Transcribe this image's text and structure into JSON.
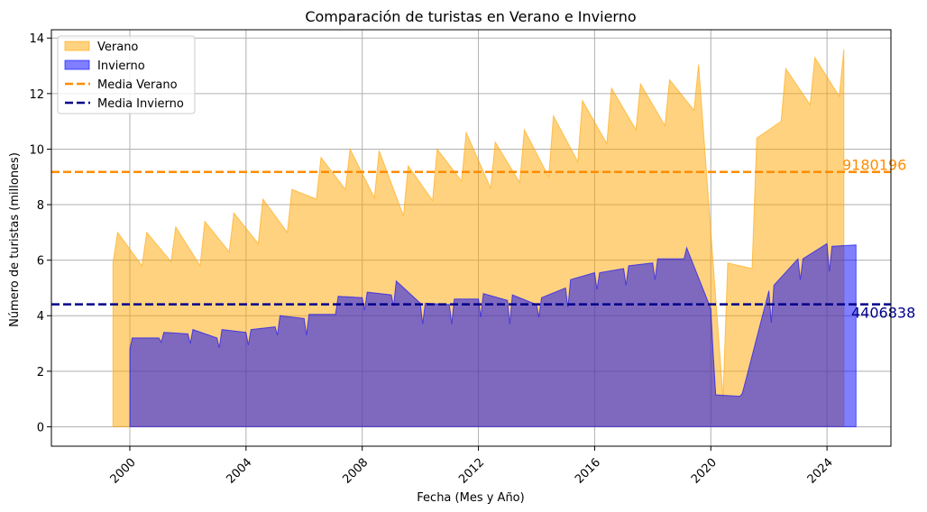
{
  "chart_data": {
    "type": "area",
    "title": "Comparación de turistas en Verano e Invierno",
    "xlabel": "Fecha (Mes y Año)",
    "ylabel": "Número de turistas (millones)",
    "xlim": [
      1997.3,
      2026.2
    ],
    "ylim": [
      -0.7,
      14.3
    ],
    "x_ticks": [
      2000,
      2004,
      2008,
      2012,
      2016,
      2020,
      2024
    ],
    "x_tick_labels": [
      "2000",
      "2004",
      "2008",
      "2012",
      "2016",
      "2020",
      "2024"
    ],
    "y_ticks": [
      0,
      2,
      4,
      6,
      8,
      10,
      12,
      14
    ],
    "y_tick_labels": [
      "0",
      "2",
      "4",
      "6",
      "8",
      "10",
      "12",
      "14"
    ],
    "grid": true,
    "legend_position": "top-left",
    "series": [
      {
        "name": "Verano",
        "kind": "area",
        "color": "#ffa500",
        "x": [
          1999.42,
          1999.58,
          2000.42,
          2000.58,
          2001.42,
          2001.58,
          2002.42,
          2002.58,
          2003.42,
          2003.58,
          2004.42,
          2004.58,
          2005.42,
          2005.58,
          2006.42,
          2006.58,
          2007.42,
          2007.58,
          2008.42,
          2008.58,
          2009.42,
          2009.58,
          2010.42,
          2010.58,
          2011.42,
          2011.58,
          2012.42,
          2012.58,
          2013.42,
          2013.58,
          2014.42,
          2014.58,
          2015.42,
          2015.58,
          2016.42,
          2016.58,
          2017.42,
          2017.58,
          2018.42,
          2018.58,
          2019.42,
          2019.58,
          2020.42,
          2020.58,
          2021.42,
          2021.58,
          2022.42,
          2022.58,
          2023.42,
          2023.58,
          2024.42,
          2024.58
        ],
        "values": [
          5.9,
          7.0,
          5.8,
          7.0,
          5.95,
          7.2,
          5.8,
          7.4,
          6.3,
          7.7,
          6.6,
          8.2,
          7.0,
          8.55,
          8.2,
          9.7,
          8.55,
          10.0,
          8.25,
          9.95,
          7.6,
          9.4,
          8.15,
          10.0,
          8.85,
          10.6,
          8.6,
          10.25,
          8.8,
          10.7,
          9.0,
          11.2,
          9.55,
          11.75,
          10.2,
          12.2,
          10.7,
          12.35,
          10.85,
          12.5,
          11.4,
          13.05,
          1.05,
          5.9,
          5.7,
          10.4,
          11.0,
          12.9,
          11.6,
          13.3,
          11.9,
          13.6
        ]
      },
      {
        "name": "Invierno",
        "kind": "area",
        "color": "#0000ff",
        "x": [
          2000.0,
          2000.08,
          2000.17,
          2001.0,
          2001.08,
          2001.17,
          2002.0,
          2002.08,
          2002.17,
          2003.0,
          2003.08,
          2003.17,
          2004.0,
          2004.08,
          2004.17,
          2005.0,
          2005.08,
          2005.17,
          2006.0,
          2006.08,
          2006.17,
          2007.0,
          2007.08,
          2007.17,
          2008.0,
          2008.08,
          2008.17,
          2009.0,
          2009.08,
          2009.17,
          2010.0,
          2010.08,
          2010.17,
          2011.0,
          2011.08,
          2011.17,
          2012.0,
          2012.08,
          2012.17,
          2013.0,
          2013.08,
          2013.17,
          2014.0,
          2014.08,
          2014.17,
          2015.0,
          2015.08,
          2015.17,
          2016.0,
          2016.08,
          2016.17,
          2017.0,
          2017.08,
          2017.17,
          2018.0,
          2018.08,
          2018.17,
          2019.0,
          2019.08,
          2019.17,
          2020.0,
          2020.08,
          2020.17,
          2021.0,
          2021.08,
          2021.17,
          2022.0,
          2022.08,
          2022.17,
          2023.0,
          2023.08,
          2023.17,
          2024.0,
          2024.08,
          2024.17,
          2025.0
        ],
        "values": [
          2.8,
          3.2,
          3.2,
          3.2,
          3.05,
          3.4,
          3.35,
          3.0,
          3.5,
          3.2,
          2.85,
          3.5,
          3.4,
          2.95,
          3.5,
          3.6,
          3.3,
          4.0,
          3.9,
          3.3,
          4.05,
          4.05,
          4.05,
          4.7,
          4.65,
          4.2,
          4.85,
          4.75,
          4.35,
          5.25,
          4.45,
          3.7,
          4.45,
          4.4,
          3.7,
          4.6,
          4.6,
          3.95,
          4.8,
          4.55,
          3.7,
          4.75,
          4.4,
          3.95,
          4.65,
          5.0,
          4.3,
          5.3,
          5.55,
          4.95,
          5.55,
          5.7,
          5.1,
          5.8,
          5.9,
          5.3,
          6.05,
          6.05,
          6.05,
          6.45,
          4.25,
          2.7,
          1.15,
          1.1,
          1.2,
          1.55,
          4.9,
          3.75,
          5.1,
          6.05,
          5.3,
          6.05,
          6.6,
          5.6,
          6.5,
          6.55
        ]
      }
    ],
    "reference_lines": [
      {
        "name": "Media Verano",
        "value": 9180196,
        "y": 9.18,
        "color": "#ff8c00",
        "label": "9180196"
      },
      {
        "name": "Media Invierno",
        "value": 4406838,
        "y": 4.41,
        "color": "#00008b",
        "label": "4406838"
      }
    ]
  }
}
